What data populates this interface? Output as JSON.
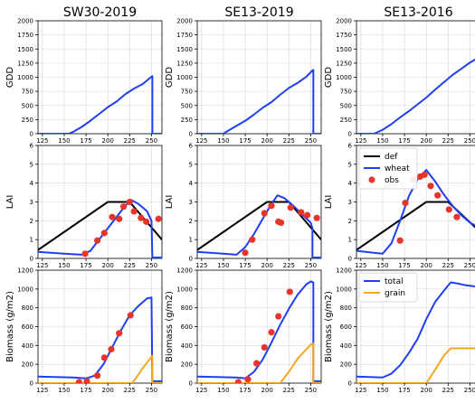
{
  "columns": [
    {
      "title": "SW30-2019"
    },
    {
      "title": "SE13-2019"
    },
    {
      "title": "SE13-2016"
    }
  ],
  "rows": [
    {
      "ylabel": "GDD"
    },
    {
      "ylabel": "LAI"
    },
    {
      "ylabel": "Biomass (g/m2)"
    }
  ],
  "legends": {
    "lai": [
      "def",
      "wheat",
      "obs"
    ],
    "biomass": [
      "total",
      "grain"
    ]
  },
  "colors": {
    "def": "#000000",
    "wheat": "#1f3ff5",
    "obs": "#e8352a",
    "total": "#1f3ff5",
    "grain": "#f5a623"
  },
  "chart_data": [
    {
      "type": "line",
      "panel": "SW30-2019 GDD",
      "title": "SW30-2019",
      "xlabel": "",
      "ylabel": "GDD",
      "xlim": [
        120,
        262
      ],
      "ylim": [
        0,
        2000
      ],
      "xticks": [
        125,
        150,
        175,
        200,
        225,
        250
      ],
      "yticks": [
        0,
        250,
        500,
        750,
        1000,
        1250,
        1500,
        1750,
        2000
      ],
      "series": [
        {
          "color": "#1f3ff5",
          "x": [
            120,
            155,
            160,
            170,
            180,
            190,
            200,
            210,
            220,
            230,
            240,
            250,
            251,
            251,
            262
          ],
          "y": [
            0,
            0,
            30,
            120,
            230,
            350,
            470,
            570,
            700,
            800,
            880,
            1010,
            1020,
            0,
            0
          ]
        }
      ]
    },
    {
      "type": "line",
      "panel": "SE13-2019 GDD",
      "title": "SE13-2019",
      "xlabel": "",
      "ylabel": "GDD",
      "xlim": [
        120,
        262
      ],
      "ylim": [
        0,
        2000
      ],
      "xticks": [
        125,
        150,
        175,
        200,
        225,
        250
      ],
      "yticks": [
        0,
        250,
        500,
        750,
        1000,
        1250,
        1500,
        1750,
        2000
      ],
      "series": [
        {
          "color": "#1f3ff5",
          "x": [
            120,
            150,
            155,
            165,
            175,
            185,
            195,
            205,
            215,
            225,
            235,
            245,
            252,
            253,
            253,
            262
          ],
          "y": [
            0,
            0,
            50,
            140,
            230,
            340,
            460,
            560,
            690,
            810,
            900,
            1010,
            1120,
            1130,
            0,
            0
          ]
        }
      ]
    },
    {
      "type": "line",
      "panel": "SE13-2016 GDD",
      "title": "SE13-2016",
      "xlabel": "",
      "ylabel": "GDD",
      "xlim": [
        120,
        262
      ],
      "ylim": [
        0,
        2000
      ],
      "xticks": [
        125,
        150,
        175,
        200,
        225,
        250
      ],
      "yticks": [
        0,
        250,
        500,
        750,
        1000,
        1250,
        1500,
        1750,
        2000
      ],
      "series": [
        {
          "color": "#1f3ff5",
          "x": [
            120,
            140,
            150,
            160,
            170,
            180,
            190,
            200,
            210,
            220,
            230,
            240,
            250,
            262
          ],
          "y": [
            0,
            0,
            70,
            170,
            290,
            400,
            520,
            640,
            780,
            910,
            1040,
            1150,
            1260,
            1370
          ]
        }
      ]
    },
    {
      "type": "line",
      "panel": "SW30-2019 LAI",
      "title": "",
      "xlabel": "",
      "ylabel": "LAI",
      "xlim": [
        120,
        262
      ],
      "ylim": [
        0,
        6
      ],
      "xticks": [
        125,
        150,
        175,
        200,
        225,
        250
      ],
      "yticks": [
        0,
        1,
        2,
        3,
        4,
        5,
        6
      ],
      "series": [
        {
          "name": "def",
          "color": "#000000",
          "x": [
            120,
            200,
            225,
            262
          ],
          "y": [
            0.45,
            3.0,
            3.0,
            1.0
          ]
        },
        {
          "name": "wheat",
          "color": "#1f3ff5",
          "x": [
            120,
            150,
            170,
            180,
            190,
            200,
            210,
            220,
            227,
            235,
            245,
            250,
            251,
            251,
            262
          ],
          "y": [
            0.35,
            0.25,
            0.2,
            0.4,
            1.0,
            1.6,
            2.2,
            2.8,
            3.1,
            2.9,
            2.5,
            2.0,
            0.05,
            0.05,
            0.05
          ]
        }
      ],
      "obs": {
        "name": "obs",
        "color": "#e8352a",
        "x": [
          174,
          188,
          196,
          205,
          213,
          218,
          225,
          230,
          238,
          244,
          258
        ],
        "y": [
          0.25,
          0.95,
          1.35,
          2.2,
          2.1,
          2.75,
          3.0,
          2.5,
          2.15,
          1.95,
          2.1
        ]
      }
    },
    {
      "type": "line",
      "panel": "SE13-2019 LAI",
      "title": "",
      "xlabel": "",
      "ylabel": "LAI",
      "xlim": [
        120,
        262
      ],
      "ylim": [
        0,
        6
      ],
      "xticks": [
        125,
        150,
        175,
        200,
        225,
        250
      ],
      "yticks": [
        0,
        1,
        2,
        3,
        4,
        5,
        6
      ],
      "series": [
        {
          "name": "def",
          "color": "#000000",
          "x": [
            120,
            200,
            225,
            262
          ],
          "y": [
            0.45,
            3.0,
            3.0,
            1.0
          ]
        },
        {
          "name": "wheat",
          "color": "#1f3ff5",
          "x": [
            120,
            150,
            165,
            175,
            185,
            195,
            205,
            212,
            220,
            230,
            240,
            250,
            252,
            252,
            262
          ],
          "y": [
            0.35,
            0.25,
            0.2,
            0.6,
            1.3,
            2.1,
            2.9,
            3.35,
            3.2,
            2.8,
            2.35,
            1.9,
            1.6,
            0.05,
            0.05
          ]
        }
      ],
      "obs": {
        "name": "obs",
        "color": "#e8352a",
        "x": [
          175,
          183,
          197,
          205,
          213,
          216,
          227,
          239,
          246,
          257
        ],
        "y": [
          0.3,
          1.0,
          2.4,
          2.8,
          1.95,
          1.9,
          2.7,
          2.45,
          2.3,
          2.15
        ]
      }
    },
    {
      "type": "line",
      "panel": "SE13-2016 LAI",
      "title": "",
      "xlabel": "",
      "ylabel": "LAI",
      "xlim": [
        120,
        262
      ],
      "ylim": [
        0,
        6
      ],
      "xticks": [
        125,
        150,
        175,
        200,
        225,
        250
      ],
      "yticks": [
        0,
        1,
        2,
        3,
        4,
        5,
        6
      ],
      "series": [
        {
          "name": "def",
          "color": "#000000",
          "x": [
            120,
            200,
            225,
            262
          ],
          "y": [
            0.45,
            3.0,
            3.0,
            1.4
          ]
        },
        {
          "name": "wheat",
          "color": "#1f3ff5",
          "x": [
            120,
            140,
            150,
            160,
            170,
            180,
            190,
            196,
            200,
            210,
            220,
            230,
            240,
            250,
            262
          ],
          "y": [
            0.4,
            0.3,
            0.25,
            0.8,
            2.0,
            3.3,
            4.2,
            4.5,
            4.7,
            4.1,
            3.4,
            2.8,
            2.3,
            1.9,
            1.6
          ]
        }
      ],
      "obs": {
        "name": "obs",
        "color": "#e8352a",
        "x": [
          170,
          176,
          185,
          193,
          198,
          205,
          213,
          226,
          235
        ],
        "y": [
          0.95,
          2.95,
          4.2,
          4.35,
          4.45,
          3.85,
          3.35,
          2.6,
          2.2
        ]
      }
    },
    {
      "type": "line",
      "panel": "SW30-2019 Biomass",
      "title": "",
      "xlabel": "",
      "ylabel": "Biomass (g/m2)",
      "xlim": [
        120,
        262
      ],
      "ylim": [
        0,
        1200
      ],
      "xticks": [
        125,
        150,
        175,
        200,
        225,
        250
      ],
      "yticks": [
        0,
        200,
        400,
        600,
        800,
        1000,
        1200
      ],
      "series": [
        {
          "name": "total",
          "color": "#1f3ff5",
          "x": [
            120,
            160,
            175,
            185,
            195,
            205,
            215,
            225,
            235,
            245,
            250,
            251,
            251,
            262
          ],
          "y": [
            70,
            60,
            50,
            80,
            200,
            380,
            560,
            720,
            820,
            900,
            910,
            20,
            20,
            20
          ]
        },
        {
          "name": "grain",
          "color": "#f5a623",
          "x": [
            120,
            228,
            235,
            240,
            245,
            250,
            251,
            251,
            262
          ],
          "y": [
            0,
            0,
            90,
            160,
            220,
            280,
            290,
            0,
            0
          ]
        }
      ],
      "obs": {
        "name": "obs",
        "color": "#e8352a",
        "x": [
          167,
          176,
          188,
          196,
          204,
          213,
          226
        ],
        "y": [
          10,
          20,
          80,
          270,
          360,
          530,
          720
        ]
      }
    },
    {
      "type": "line",
      "panel": "SE13-2019 Biomass",
      "title": "",
      "xlabel": "",
      "ylabel": "Biomass (g/m2)",
      "xlim": [
        120,
        262
      ],
      "ylim": [
        0,
        1200
      ],
      "xticks": [
        125,
        150,
        175,
        200,
        225,
        250
      ],
      "yticks": [
        0,
        200,
        400,
        600,
        800,
        1000,
        1200
      ],
      "series": [
        {
          "name": "total",
          "color": "#1f3ff5",
          "x": [
            120,
            165,
            175,
            185,
            195,
            205,
            215,
            225,
            235,
            245,
            250,
            253,
            253,
            262
          ],
          "y": [
            70,
            60,
            50,
            120,
            250,
            430,
            620,
            790,
            940,
            1050,
            1080,
            1070,
            20,
            20
          ]
        },
        {
          "name": "grain",
          "color": "#f5a623",
          "x": [
            120,
            215,
            225,
            235,
            245,
            250,
            253,
            253,
            262
          ],
          "y": [
            0,
            0,
            120,
            260,
            360,
            410,
            420,
            0,
            0
          ]
        }
      ],
      "obs": {
        "name": "obs",
        "color": "#e8352a",
        "x": [
          167,
          178,
          188,
          197,
          205,
          213,
          226
        ],
        "y": [
          10,
          40,
          210,
          380,
          540,
          710,
          970
        ]
      }
    },
    {
      "type": "line",
      "panel": "SE13-2016 Biomass",
      "title": "",
      "xlabel": "",
      "ylabel": "Biomass (g/m2)",
      "xlim": [
        120,
        262
      ],
      "ylim": [
        0,
        1200
      ],
      "xticks": [
        125,
        150,
        175,
        200,
        225,
        250
      ],
      "yticks": [
        0,
        200,
        400,
        600,
        800,
        1000,
        1200
      ],
      "series": [
        {
          "name": "total",
          "color": "#1f3ff5",
          "x": [
            120,
            150,
            160,
            170,
            180,
            190,
            200,
            210,
            220,
            228,
            235,
            245,
            262
          ],
          "y": [
            70,
            60,
            100,
            190,
            320,
            470,
            680,
            860,
            980,
            1070,
            1060,
            1040,
            1020
          ]
        },
        {
          "name": "grain",
          "color": "#f5a623",
          "x": [
            120,
            200,
            210,
            220,
            228,
            235,
            262
          ],
          "y": [
            0,
            0,
            140,
            290,
            370,
            370,
            370
          ]
        }
      ]
    }
  ]
}
